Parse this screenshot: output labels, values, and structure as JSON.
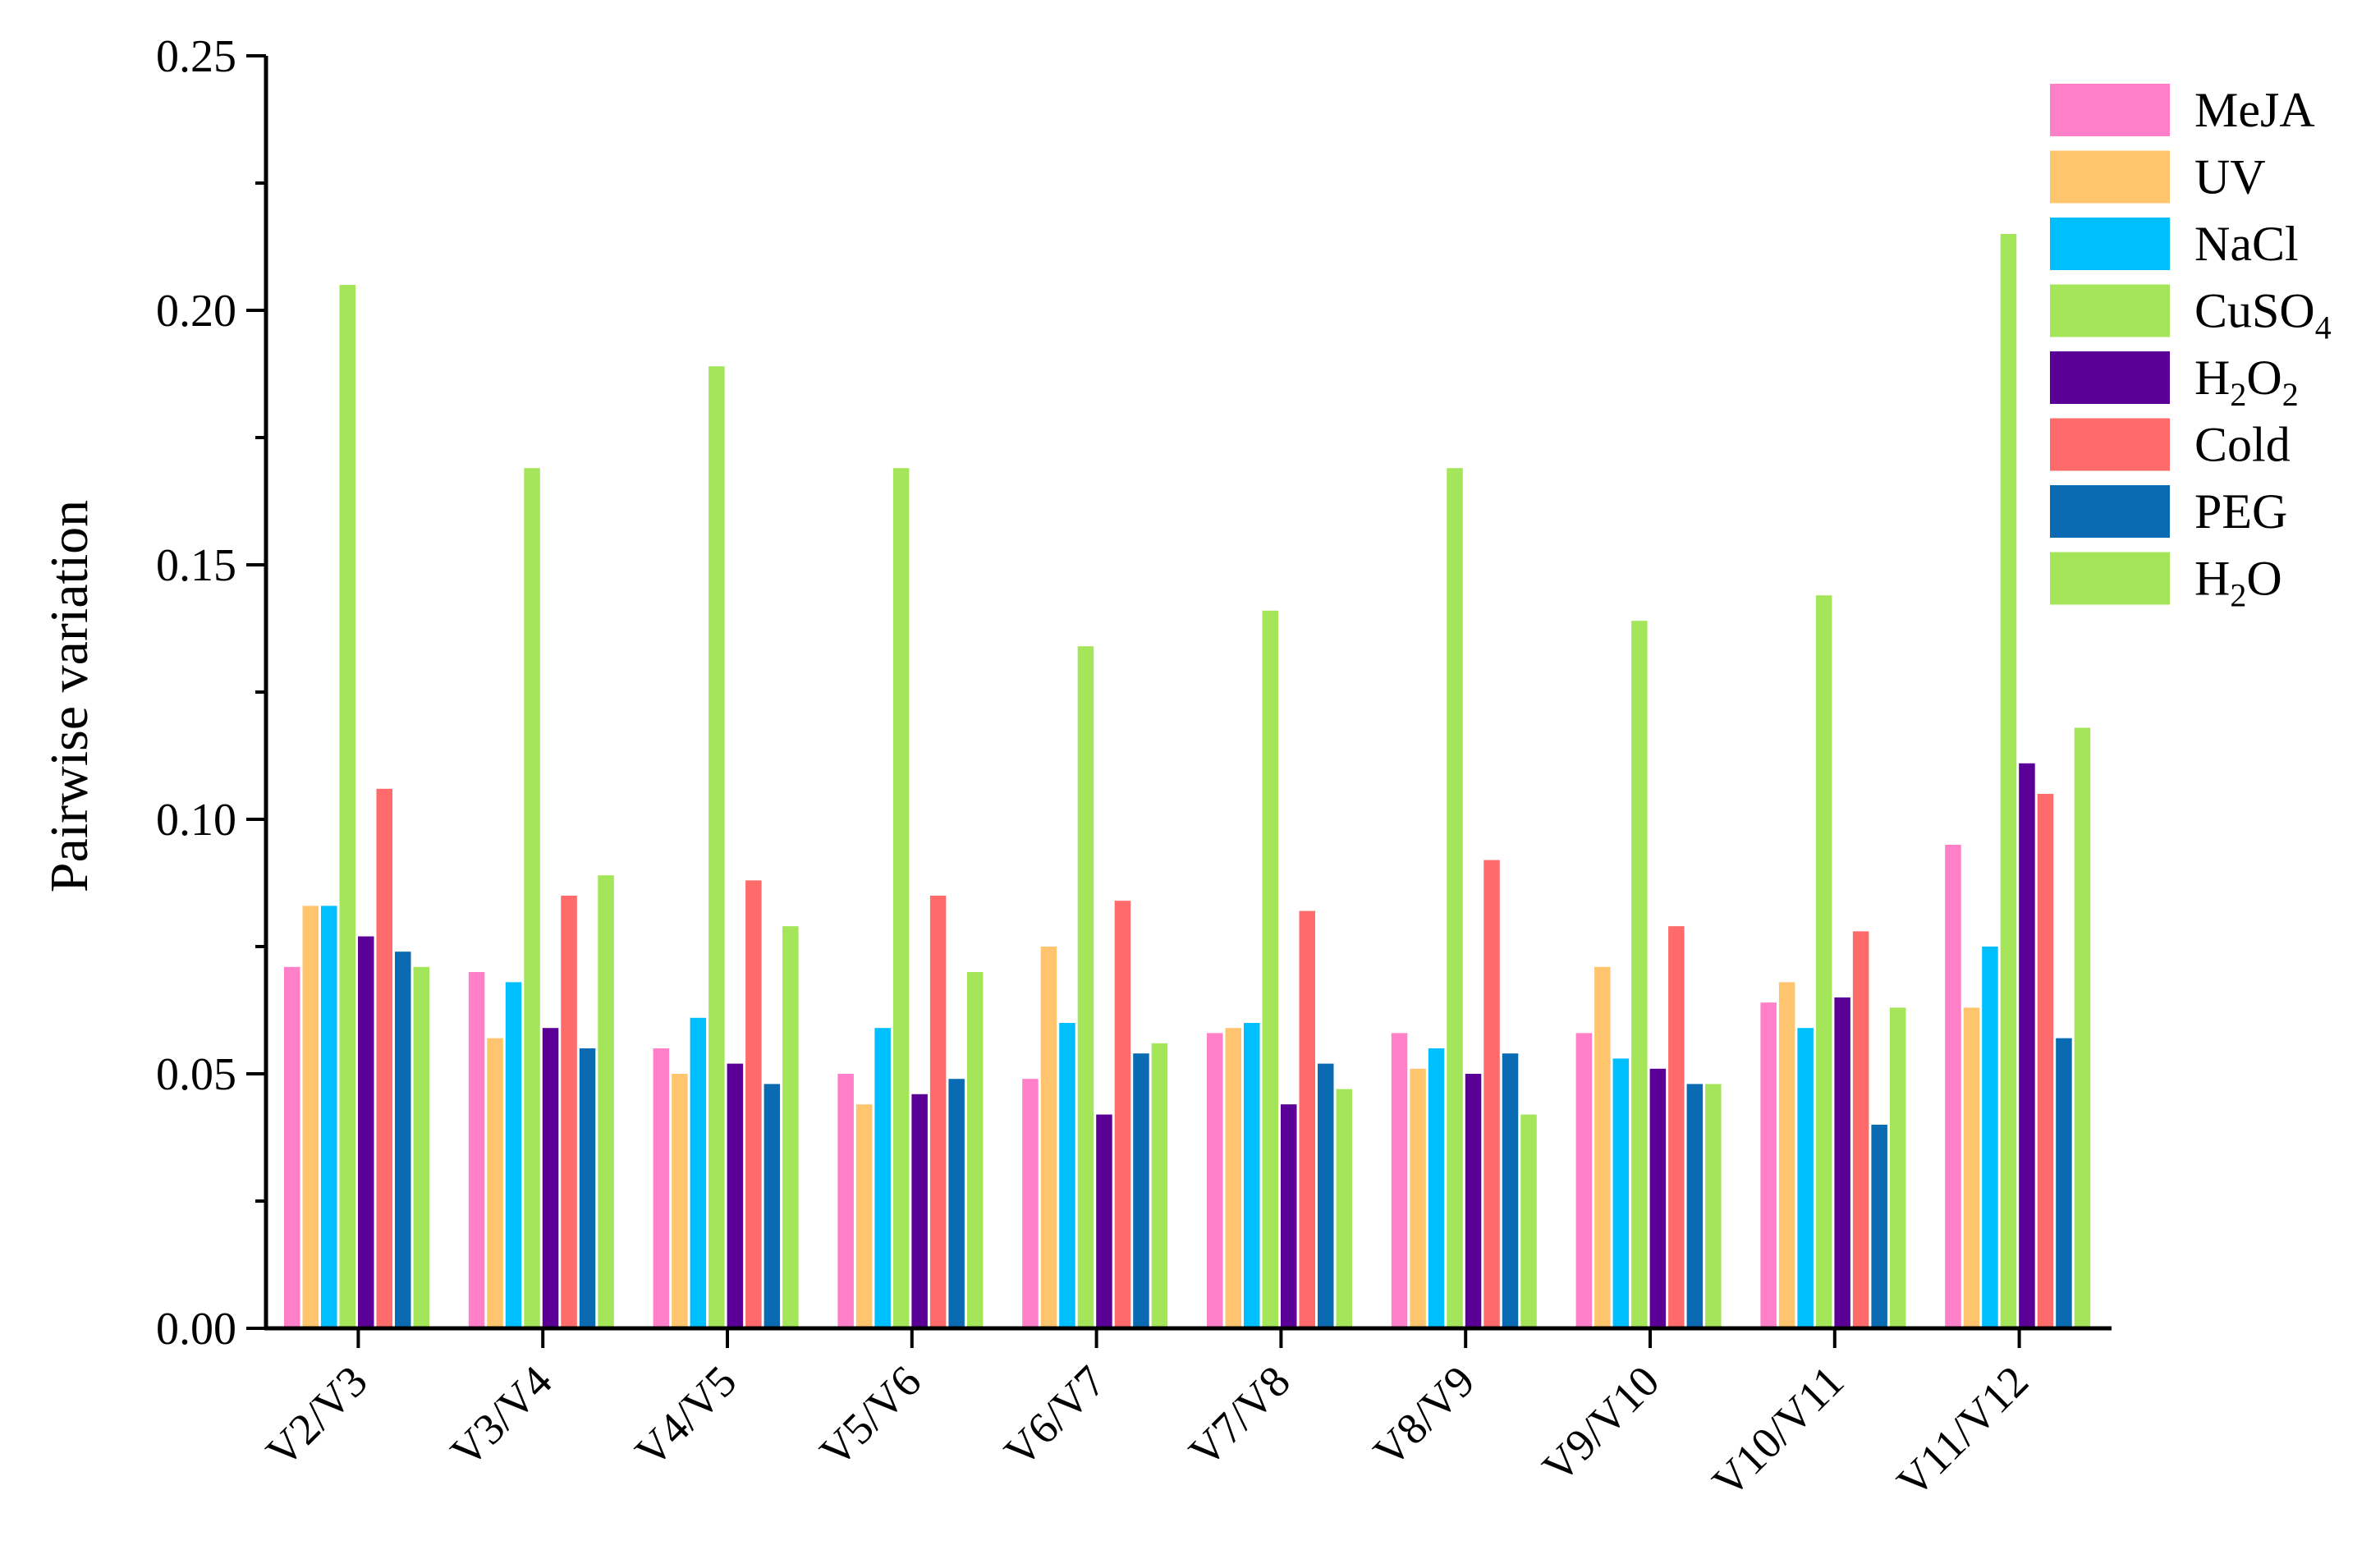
{
  "chart_data": {
    "type": "bar",
    "title": "",
    "xlabel": "",
    "ylabel": "Pairwise variation",
    "ylim": [
      0,
      0.25
    ],
    "yticks": [
      "0.00",
      "0.05",
      "0.10",
      "0.15",
      "0.20",
      "0.25"
    ],
    "grid": false,
    "legend_position": "top-right",
    "categories": [
      "V2/V3",
      "V3/V4",
      "V4/V5",
      "V5/V6",
      "V6/V7",
      "V7/V8",
      "V8/V9",
      "V9/V10",
      "V10/V11",
      "V11/V12"
    ],
    "series": [
      {
        "name": "MeJA",
        "color": "#ff7fc8",
        "values": [
          0.071,
          0.07,
          0.055,
          0.05,
          0.049,
          0.058,
          0.058,
          0.058,
          0.064,
          0.095
        ]
      },
      {
        "name": "UV",
        "color": "#ffc46e",
        "values": [
          0.083,
          0.057,
          0.05,
          0.044,
          0.075,
          0.059,
          0.051,
          0.071,
          0.068,
          0.063
        ]
      },
      {
        "name": "NaCl",
        "color": "#00bfff",
        "values": [
          0.083,
          0.068,
          0.061,
          0.059,
          0.06,
          0.06,
          0.055,
          0.053,
          0.059,
          0.075
        ]
      },
      {
        "name": "CuSO4",
        "name_main": "CuSO",
        "name_sub": "4",
        "color": "#a5e55a",
        "values": [
          0.205,
          0.169,
          0.189,
          0.169,
          0.134,
          0.141,
          0.169,
          0.139,
          0.144,
          0.215
        ]
      },
      {
        "name": "H2O2",
        "name_main": "H",
        "name_sub": "2",
        "name_main2": "O",
        "name_sub2": "2",
        "color": "#5a0096",
        "values": [
          0.077,
          0.059,
          0.052,
          0.046,
          0.042,
          0.044,
          0.05,
          0.051,
          0.065,
          0.111
        ]
      },
      {
        "name": "Cold",
        "color": "#ff6a6a",
        "values": [
          0.106,
          0.085,
          0.088,
          0.085,
          0.084,
          0.082,
          0.092,
          0.079,
          0.078,
          0.105
        ]
      },
      {
        "name": "PEG",
        "color": "#0a6bb3",
        "values": [
          0.074,
          0.055,
          0.048,
          0.049,
          0.054,
          0.052,
          0.054,
          0.048,
          0.04,
          0.057
        ]
      },
      {
        "name": "H2O",
        "name_main": "H",
        "name_sub": "2",
        "name_main2": "O",
        "color": "#a5e55a",
        "values": [
          0.071,
          0.089,
          0.079,
          0.07,
          0.056,
          0.047,
          0.042,
          0.048,
          0.063,
          0.118
        ]
      }
    ]
  }
}
